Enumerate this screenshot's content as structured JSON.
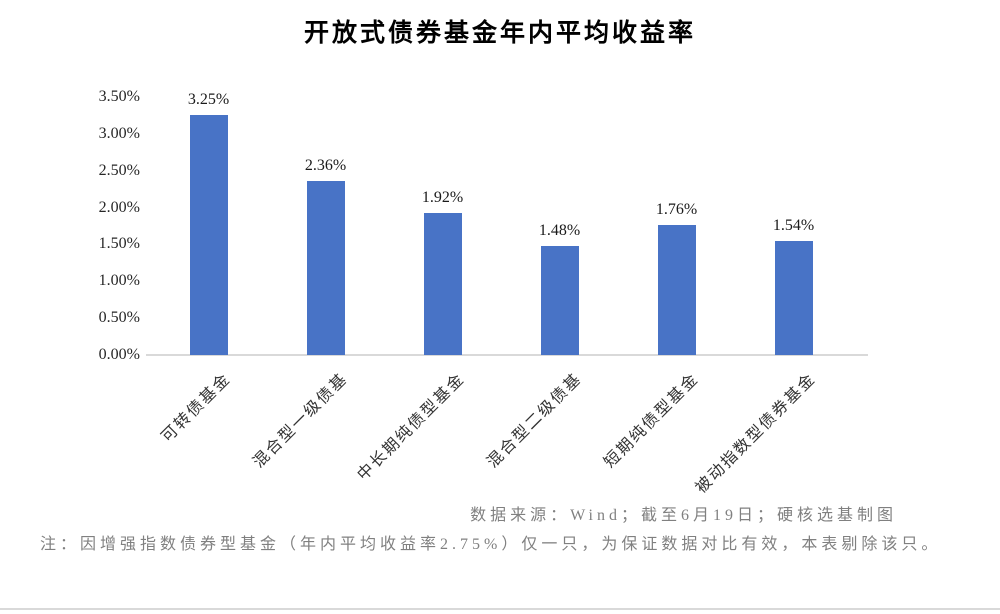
{
  "chart_data": {
    "type": "bar",
    "title": "开放式债券基金年内平均收益率",
    "categories": [
      "可转债基金",
      "混合型一级债基",
      "中长期纯债型基金",
      "混合型二级债基",
      "短期纯债型基金",
      "被动指数型债券基金"
    ],
    "values": [
      3.25,
      2.36,
      1.92,
      1.48,
      1.76,
      1.54
    ],
    "value_labels": [
      "3.25%",
      "2.36%",
      "1.92%",
      "1.48%",
      "1.76%",
      "1.54%"
    ],
    "xlabel": "",
    "ylabel": "",
    "ylim": [
      0,
      3.5
    ],
    "ytick_step": 0.5,
    "ytick_labels": [
      "0.00%",
      "0.50%",
      "1.00%",
      "1.50%",
      "2.00%",
      "2.50%",
      "3.00%",
      "3.50%"
    ],
    "grid": false,
    "legend": false,
    "bar_color": "#4873C6",
    "axis_line_color": "#d9d9d9"
  },
  "footer": {
    "source": "数据来源：Wind；截至6月19日；硬核选基制图",
    "note": "注：因增强指数债券型基金（年内平均收益率2.75%）仅一只，为保证数据对比有效，本表剔除该只。"
  },
  "colors": {
    "bar": "#4873C6",
    "axis_line": "#d9d9d9",
    "title_text": "#000000",
    "label_text": "#262626",
    "footer_text": "#808080"
  }
}
